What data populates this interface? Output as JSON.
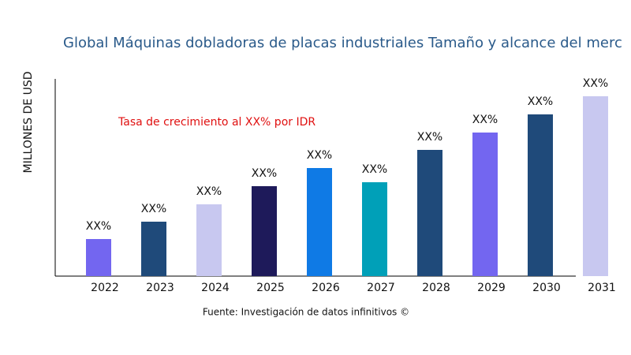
{
  "chart_data": {
    "type": "bar",
    "title": "Global Máquinas dobladoras de placas industriales Tamaño y alcance del merc",
    "y_label": "MILLONES DE USD",
    "annotation": "Tasa de crecimiento al XX% por IDR",
    "source": "Fuente: Investigación de datos infinitivos ©",
    "categories": [
      "2022",
      "2023",
      "2024",
      "2025",
      "2026",
      "2027",
      "2028",
      "2029",
      "2030",
      "2031"
    ],
    "values": [
      47,
      69,
      91,
      114,
      137,
      119,
      160,
      182,
      205,
      228
    ],
    "value_labels": [
      "XX%",
      "XX%",
      "XX%",
      "XX%",
      "XX%",
      "XX%",
      "XX%",
      "XX%",
      "XX%",
      "XX%"
    ],
    "colors": [
      "#7366f0",
      "#1f4a7a",
      "#c8c8f0",
      "#1e1a5a",
      "#0f7ae5",
      "#00a0b8",
      "#1f4a7a",
      "#7366f0",
      "#1f4a7a",
      "#c8c8f0"
    ],
    "ylim": [
      0,
      250
    ]
  }
}
